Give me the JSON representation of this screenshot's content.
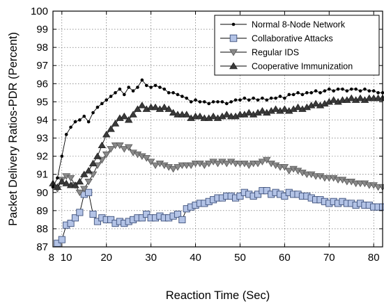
{
  "chart_data": {
    "type": "line",
    "title": "",
    "xlabel": "Reaction Time (Sec)",
    "ylabel": "Packet Delivery Ratios-PDR (Percent)",
    "xlim": [
      8,
      82
    ],
    "ylim": [
      87,
      100
    ],
    "x_ticks": [
      {
        "value": 8,
        "label": "8"
      },
      {
        "value": 10,
        "label": "10"
      },
      {
        "value": 20,
        "label": "20"
      },
      {
        "value": 30,
        "label": "30"
      },
      {
        "value": 40,
        "label": "40"
      },
      {
        "value": 50,
        "label": "50"
      },
      {
        "value": 60,
        "label": "60"
      },
      {
        "value": 70,
        "label": "70"
      },
      {
        "value": 80,
        "label": "80"
      }
    ],
    "y_ticks": [
      87,
      88,
      89,
      90,
      91,
      92,
      93,
      94,
      95,
      96,
      97,
      98,
      99,
      100
    ],
    "grid": true,
    "legend_position": "top-right",
    "series": [
      {
        "name": "Normal 8-Node Network",
        "marker": "dot",
        "color": "#000000",
        "x": [
          8,
          9,
          10,
          11,
          12,
          13,
          14,
          15,
          16,
          17,
          18,
          19,
          20,
          21,
          22,
          23,
          24,
          25,
          26,
          27,
          28,
          29,
          30,
          31,
          32,
          33,
          34,
          35,
          36,
          37,
          38,
          39,
          40,
          41,
          42,
          43,
          44,
          45,
          46,
          47,
          48,
          49,
          50,
          51,
          52,
          53,
          54,
          55,
          56,
          57,
          58,
          59,
          60,
          61,
          62,
          63,
          64,
          65,
          66,
          67,
          68,
          69,
          70,
          71,
          72,
          73,
          74,
          75,
          76,
          77,
          78,
          79,
          80,
          81,
          82
        ],
        "y": [
          90.3,
          90.8,
          92.0,
          93.2,
          93.6,
          93.9,
          94.0,
          94.2,
          93.9,
          94.4,
          94.7,
          94.9,
          95.1,
          95.3,
          95.5,
          95.7,
          95.4,
          95.8,
          95.6,
          95.8,
          96.2,
          95.9,
          95.8,
          95.9,
          95.8,
          95.7,
          95.5,
          95.5,
          95.4,
          95.3,
          95.2,
          95.0,
          95.1,
          95.0,
          95.0,
          94.9,
          95.0,
          95.0,
          95.0,
          94.9,
          95.0,
          95.1,
          95.1,
          95.2,
          95.1,
          95.2,
          95.1,
          95.2,
          95.1,
          95.2,
          95.2,
          95.3,
          95.2,
          95.4,
          95.4,
          95.5,
          95.4,
          95.5,
          95.5,
          95.6,
          95.5,
          95.6,
          95.7,
          95.6,
          95.7,
          95.7,
          95.6,
          95.7,
          95.7,
          95.6,
          95.7,
          95.6,
          95.6,
          95.5,
          95.5
        ]
      },
      {
        "name": "Collaborative Attacks",
        "marker": "square",
        "color": "#b3c3e6",
        "x": [
          9,
          10,
          11,
          12,
          13,
          14,
          15,
          16,
          17,
          18,
          19,
          20,
          21,
          22,
          23,
          24,
          25,
          26,
          27,
          28,
          29,
          30,
          31,
          32,
          33,
          34,
          35,
          36,
          37,
          38,
          39,
          40,
          41,
          42,
          43,
          44,
          45,
          46,
          47,
          48,
          49,
          50,
          51,
          52,
          53,
          54,
          55,
          56,
          57,
          58,
          59,
          60,
          61,
          62,
          63,
          64,
          65,
          66,
          67,
          68,
          69,
          70,
          71,
          72,
          73,
          74,
          75,
          76,
          77,
          78,
          79,
          80,
          81,
          82
        ],
        "y": [
          87.2,
          87.4,
          88.2,
          88.3,
          88.6,
          88.9,
          89.9,
          90.0,
          88.8,
          88.4,
          88.6,
          88.5,
          88.5,
          88.3,
          88.4,
          88.3,
          88.4,
          88.5,
          88.6,
          88.6,
          88.8,
          88.6,
          88.6,
          88.7,
          88.6,
          88.6,
          88.7,
          88.8,
          88.5,
          89.1,
          89.2,
          89.3,
          89.4,
          89.4,
          89.5,
          89.6,
          89.7,
          89.7,
          89.8,
          89.8,
          89.7,
          89.8,
          90.0,
          89.9,
          89.8,
          89.9,
          90.1,
          90.1,
          89.9,
          90.0,
          89.9,
          89.8,
          90.0,
          89.9,
          89.9,
          89.8,
          89.8,
          89.7,
          89.6,
          89.6,
          89.5,
          89.4,
          89.5,
          89.4,
          89.5,
          89.4,
          89.4,
          89.3,
          89.4,
          89.3,
          89.3,
          89.2,
          89.2,
          89.2
        ]
      },
      {
        "name": "Regular IDS",
        "marker": "triangle-down",
        "color": "#8a8a8a",
        "x": [
          9,
          10,
          11,
          12,
          13,
          14,
          15,
          16,
          17,
          18,
          19,
          20,
          21,
          22,
          23,
          24,
          25,
          26,
          27,
          28,
          29,
          30,
          31,
          32,
          33,
          34,
          35,
          36,
          37,
          38,
          39,
          40,
          41,
          42,
          43,
          44,
          45,
          46,
          47,
          48,
          49,
          50,
          51,
          52,
          53,
          54,
          55,
          56,
          57,
          58,
          59,
          60,
          61,
          62,
          63,
          64,
          65,
          66,
          67,
          68,
          69,
          70,
          71,
          72,
          73,
          74,
          75,
          76,
          77,
          78,
          79,
          80,
          81,
          82
        ],
        "y": [
          90.2,
          90.7,
          90.9,
          90.8,
          90.4,
          90.0,
          90.2,
          90.6,
          91.0,
          91.5,
          91.8,
          92.1,
          92.4,
          92.6,
          92.6,
          92.4,
          92.5,
          92.2,
          92.1,
          92.0,
          91.9,
          91.7,
          91.5,
          91.6,
          91.5,
          91.4,
          91.3,
          91.4,
          91.5,
          91.5,
          91.5,
          91.6,
          91.6,
          91.5,
          91.6,
          91.7,
          91.6,
          91.7,
          91.6,
          91.7,
          91.6,
          91.6,
          91.6,
          91.5,
          91.6,
          91.6,
          91.7,
          91.8,
          91.6,
          91.5,
          91.4,
          91.4,
          91.2,
          91.3,
          91.2,
          91.1,
          91.0,
          91.0,
          90.9,
          90.9,
          90.8,
          90.8,
          90.8,
          90.7,
          90.7,
          90.6,
          90.6,
          90.5,
          90.5,
          90.5,
          90.4,
          90.4,
          90.3,
          90.3
        ]
      },
      {
        "name": "Cooperative Immunization",
        "marker": "triangle-up",
        "color": "#3a3a3a",
        "x": [
          8,
          9,
          10,
          11,
          12,
          13,
          14,
          15,
          16,
          17,
          18,
          19,
          20,
          21,
          22,
          23,
          24,
          25,
          26,
          27,
          28,
          29,
          30,
          31,
          32,
          33,
          34,
          35,
          36,
          37,
          38,
          39,
          40,
          41,
          42,
          43,
          44,
          45,
          46,
          47,
          48,
          49,
          50,
          51,
          52,
          53,
          54,
          55,
          56,
          57,
          58,
          59,
          60,
          61,
          62,
          63,
          64,
          65,
          66,
          67,
          68,
          69,
          70,
          71,
          72,
          73,
          74,
          75,
          76,
          77,
          78,
          79,
          80,
          81,
          82
        ],
        "y": [
          90.5,
          90.3,
          90.6,
          90.5,
          90.4,
          90.4,
          90.6,
          91.0,
          91.2,
          91.6,
          92.0,
          92.6,
          93.2,
          93.5,
          93.8,
          94.1,
          94.2,
          94.0,
          94.3,
          94.6,
          94.8,
          94.6,
          94.7,
          94.7,
          94.6,
          94.7,
          94.6,
          94.4,
          94.3,
          94.3,
          94.3,
          94.1,
          94.2,
          94.2,
          94.1,
          94.1,
          94.2,
          94.1,
          94.2,
          94.3,
          94.2,
          94.2,
          94.3,
          94.3,
          94.4,
          94.3,
          94.4,
          94.5,
          94.4,
          94.5,
          94.6,
          94.5,
          94.6,
          94.5,
          94.6,
          94.7,
          94.6,
          94.7,
          94.8,
          94.9,
          94.8,
          94.9,
          95.0,
          95.1,
          95.0,
          95.1,
          95.1,
          95.2,
          95.1,
          95.2,
          95.1,
          95.2,
          95.2,
          95.2,
          95.2
        ]
      }
    ]
  }
}
